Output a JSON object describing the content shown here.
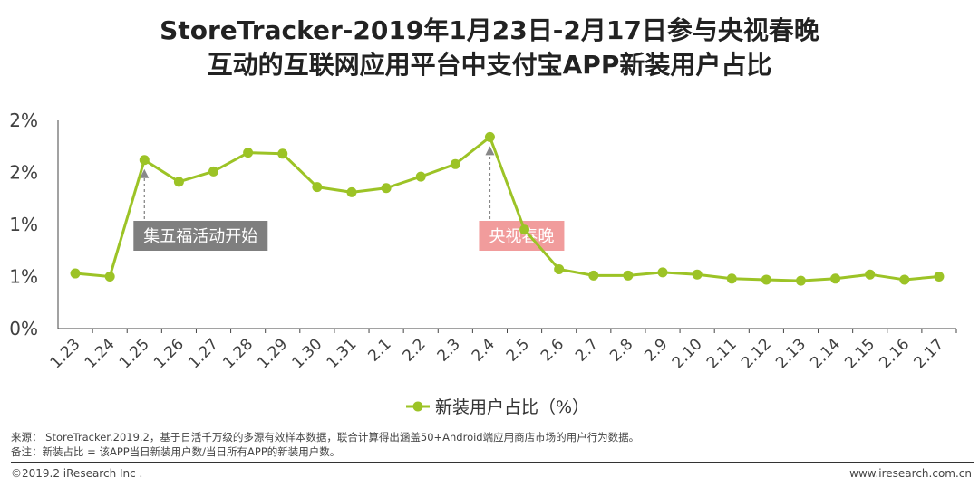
{
  "title": {
    "line1": "StoreTracker-2019年1月23日-2月17日参与央视春晚",
    "line2": "互动的互联网应用平台中支付宝APP新装用户占比"
  },
  "colors": {
    "series": "#9cc326",
    "callout_gray": "#7f7f7f",
    "callout_pink": "#f19c9c",
    "axis": "#444444",
    "arrow": "#888888"
  },
  "chart_data": {
    "type": "line",
    "title": "StoreTracker-2019年1月23日-2月17日参与央视春晚互动的互联网应用平台中支付宝APP新装用户占比",
    "xlabel": "",
    "ylabel": "",
    "categories": [
      "1.23",
      "1.24",
      "1.25",
      "1.26",
      "1.27",
      "1.28",
      "1.29",
      "1.30",
      "1.31",
      "2.1",
      "2.2",
      "2.3",
      "2.4",
      "2.5",
      "2.6",
      "2.7",
      "2.8",
      "2.9",
      "2.10",
      "2.11",
      "2.12",
      "2.13",
      "2.14",
      "2.15",
      "2.16",
      "2.17"
    ],
    "series": [
      {
        "name": "新装用户占比（%）",
        "values": [
          0.53,
          0.5,
          1.62,
          1.41,
          1.51,
          1.69,
          1.68,
          1.36,
          1.31,
          1.35,
          1.46,
          1.58,
          1.84,
          0.95,
          0.57,
          0.51,
          0.51,
          0.54,
          0.52,
          0.48,
          0.47,
          0.46,
          0.48,
          0.52,
          0.47,
          0.5
        ]
      }
    ],
    "ylim": [
      0,
      2
    ],
    "ytick_values": [
      0,
      0.5,
      1,
      1.5,
      2
    ],
    "ytick_labels": [
      "0%",
      "1%",
      "1%",
      "2%",
      "2%"
    ],
    "legend": {
      "label": "新装用户占比（%）",
      "position": "bottom"
    },
    "annotations": [
      {
        "text": "集五福活动开始",
        "category": "1.25",
        "style": "gray"
      },
      {
        "text": "央视春晚",
        "category": "2.4",
        "style": "pink"
      }
    ]
  },
  "footer": {
    "source": "来源： StoreTracker.2019.2，基于日活千万级的多源有效样本数据，联合计算得出涵盖50+Android端应用商店市场的用户行为数据。",
    "note": "备注：新装占比 = 该APP当日新装用户数/当日所有APP的新装用户数。",
    "copyright": "©2019.2 iResearch Inc .",
    "website": "www.iresearch.com.cn"
  }
}
